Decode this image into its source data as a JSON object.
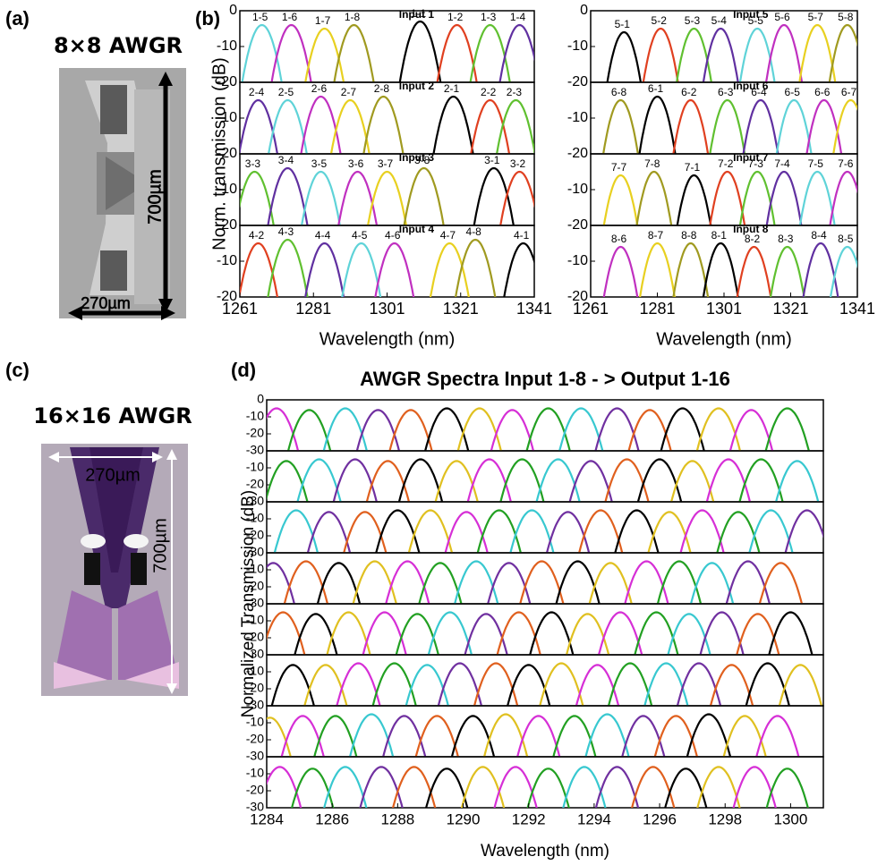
{
  "panel_labels": {
    "a": "(a)",
    "b": "(b)",
    "c": "(c)",
    "d": "(d)"
  },
  "device_8x8": {
    "title": "8×8 AWGR",
    "length": "700µm",
    "width": "270µm"
  },
  "device_16x16": {
    "title": "16×16 AWGR",
    "length": "700µm",
    "width": "270µm"
  },
  "chart_data": [
    {
      "type": "spectra",
      "ylabel": "Norm. transmission (dB)",
      "xlabel": "Wavelength (nm)",
      "xlim": [
        1261,
        1341
      ],
      "xticks": [
        1261,
        1281,
        1301,
        1321,
        1341
      ],
      "ylim": [
        -20,
        0
      ],
      "yticks": [
        0,
        -10,
        -20
      ],
      "panels": [
        {
          "title": "Input 1",
          "labels": [
            "1-5",
            "1-6",
            "1-7",
            "1-8",
            "1-1",
            "1-2",
            "1-3",
            "1-4"
          ],
          "x": [
            1267,
            1275,
            1284,
            1292,
            1310,
            1320,
            1329,
            1337
          ],
          "values": [
            -4,
            -4,
            -5,
            -4,
            -3,
            -4,
            -4,
            -4
          ],
          "colors": [
            "#5fd3d8",
            "#c030c0",
            "#e8d020",
            "#a09a20",
            "#000000",
            "#e04020",
            "#60c030",
            "#6030a0"
          ]
        },
        {
          "title": "Input 2",
          "labels": [
            "2-4",
            "2-5",
            "2-6",
            "2-7",
            "2-8",
            "2-1",
            "2-2",
            "2-3"
          ],
          "x": [
            1266,
            1274,
            1283,
            1291,
            1300,
            1319,
            1329,
            1336
          ],
          "values": [
            -5,
            -5,
            -4,
            -5,
            -4,
            -4,
            -5,
            -5
          ],
          "colors": [
            "#6030a0",
            "#5fd3d8",
            "#c030c0",
            "#e8d020",
            "#a09a20",
            "#000000",
            "#e04020",
            "#60c030"
          ]
        },
        {
          "title": "Input 3",
          "labels": [
            "3-3",
            "3-4",
            "3-5",
            "3-6",
            "3-7",
            "3-8",
            "3-1",
            "3-2"
          ],
          "x": [
            1265,
            1274,
            1283,
            1293,
            1301,
            1311,
            1330,
            1337
          ],
          "values": [
            -5,
            -4,
            -5,
            -5,
            -5,
            -4,
            -4,
            -5
          ],
          "colors": [
            "#60c030",
            "#6030a0",
            "#5fd3d8",
            "#c030c0",
            "#e8d020",
            "#a09a20",
            "#000000",
            "#e04020"
          ]
        },
        {
          "title": "Input 4",
          "labels": [
            "4-2",
            "4-3",
            "4-4",
            "4-5",
            "4-6",
            "4-7",
            "4-8",
            "4-1"
          ],
          "x": [
            1266,
            1274,
            1284,
            1294,
            1303,
            1318,
            1325,
            1338
          ],
          "values": [
            -5,
            -4,
            -5,
            -5,
            -5,
            -5,
            -4,
            -5
          ],
          "colors": [
            "#e04020",
            "#60c030",
            "#6030a0",
            "#5fd3d8",
            "#c030c0",
            "#e8d020",
            "#a09a20",
            "#000000"
          ]
        }
      ]
    },
    {
      "type": "spectra",
      "xlabel": "Wavelength (nm)",
      "xlim": [
        1261,
        1341
      ],
      "xticks": [
        1261,
        1281,
        1301,
        1321,
        1341
      ],
      "ylim": [
        -20,
        0
      ],
      "yticks": [
        0,
        -10,
        -20
      ],
      "panels": [
        {
          "title": "Input 5",
          "labels": [
            "5-1",
            "5-2",
            "5-3",
            "5-4",
            "5-5",
            "5-6",
            "5-7",
            "5-8"
          ],
          "x": [
            1271,
            1282,
            1292,
            1300,
            1311,
            1319,
            1329,
            1338
          ],
          "values": [
            -6,
            -5,
            -5,
            -5,
            -5,
            -4,
            -4,
            -4
          ],
          "colors": [
            "#000000",
            "#e04020",
            "#60c030",
            "#6030a0",
            "#5fd3d8",
            "#c030c0",
            "#e8d020",
            "#a09a20"
          ]
        },
        {
          "title": "Input 6",
          "labels": [
            "6-8",
            "6-1",
            "6-2",
            "6-3",
            "6-4",
            "6-5",
            "6-6",
            "6-7"
          ],
          "x": [
            1270,
            1281,
            1291,
            1302,
            1312,
            1322,
            1331,
            1339
          ],
          "values": [
            -5,
            -4,
            -5,
            -5,
            -5,
            -5,
            -5,
            -5
          ],
          "colors": [
            "#a09a20",
            "#000000",
            "#e04020",
            "#60c030",
            "#6030a0",
            "#5fd3d8",
            "#c030c0",
            "#e8d020"
          ]
        },
        {
          "title": "Input 7",
          "labels": [
            "7-7",
            "7-8",
            "7-1",
            "7-2",
            "7-3",
            "7-4",
            "7-5",
            "7-6"
          ],
          "x": [
            1270,
            1280,
            1292,
            1302,
            1311,
            1319,
            1329,
            1338
          ],
          "values": [
            -6,
            -5,
            -6,
            -5,
            -5,
            -5,
            -5,
            -5
          ],
          "colors": [
            "#e8d020",
            "#a09a20",
            "#000000",
            "#e04020",
            "#60c030",
            "#6030a0",
            "#5fd3d8",
            "#c030c0"
          ]
        },
        {
          "title": "Input 8",
          "labels": [
            "8-6",
            "8-7",
            "8-8",
            "8-1",
            "8-2",
            "8-3",
            "8-4",
            "8-5"
          ],
          "x": [
            1270,
            1281,
            1291,
            1300,
            1310,
            1320,
            1330,
            1338
          ],
          "values": [
            -6,
            -5,
            -5,
            -5,
            -6,
            -6,
            -5,
            -6
          ],
          "colors": [
            "#c030c0",
            "#e8d020",
            "#a09a20",
            "#000000",
            "#e04020",
            "#60c030",
            "#6030a0",
            "#5fd3d8"
          ]
        }
      ]
    },
    {
      "type": "spectra",
      "title": "AWGR Spectra Input 1-8 - > Output 1-16",
      "ylabel": "Normalized Transmission (dB)",
      "xlabel": "Wavelength (nm)",
      "xlim": [
        1284,
        1301
      ],
      "xticks": [
        1284,
        1286,
        1288,
        1290,
        1292,
        1294,
        1296,
        1298,
        1300
      ],
      "ylim": [
        -30,
        0
      ],
      "yticks": [
        0,
        -10,
        -20,
        -30
      ],
      "palette": [
        "#d62fd6",
        "#22a022",
        "#38c8d0",
        "#7030a0",
        "#e0601e",
        "#000000",
        "#e0c020"
      ],
      "panels": [
        {
          "x": [
            1284.3,
            1285.3,
            1286.4,
            1287.4,
            1288.4,
            1289.5,
            1290.5,
            1291.5,
            1292.6,
            1293.6,
            1294.7,
            1295.7,
            1296.7,
            1297.8,
            1298.8,
            1299.9
          ],
          "values": [
            -5,
            -6,
            -5,
            -6,
            -6,
            -5,
            -5,
            -6,
            -5,
            -5,
            -5,
            -6,
            -5,
            -5,
            -6,
            -5
          ]
        },
        {
          "x": [
            1284.6,
            1285.6,
            1286.7,
            1287.7,
            1288.7,
            1289.8,
            1290.8,
            1291.8,
            1292.9,
            1293.9,
            1295.0,
            1296.0,
            1297.0,
            1298.1,
            1299.1,
            1300.2
          ],
          "values": [
            -6,
            -5,
            -5,
            -6,
            -5,
            -6,
            -5,
            -5,
            -5,
            -6,
            -5,
            -5,
            -6,
            -5,
            -5,
            -6
          ]
        },
        {
          "x": [
            1284.9,
            1285.9,
            1287.0,
            1288.0,
            1289.0,
            1290.1,
            1291.1,
            1292.1,
            1293.2,
            1294.2,
            1295.3,
            1296.3,
            1297.3,
            1298.4,
            1299.4,
            1300.5
          ],
          "values": [
            -5,
            -6,
            -6,
            -5,
            -5,
            -6,
            -5,
            -5,
            -6,
            -5,
            -5,
            -6,
            -5,
            -6,
            -5,
            -5
          ]
        },
        {
          "x": [
            1284.2,
            1285.2,
            1286.2,
            1287.3,
            1288.3,
            1289.3,
            1290.4,
            1291.4,
            1292.4,
            1293.5,
            1294.5,
            1295.6,
            1296.6,
            1297.6,
            1298.7,
            1299.7
          ],
          "values": [
            -6,
            -5,
            -6,
            -5,
            -5,
            -6,
            -5,
            -6,
            -5,
            -5,
            -6,
            -5,
            -5,
            -6,
            -5,
            -6
          ]
        },
        {
          "x": [
            1284.5,
            1285.5,
            1286.5,
            1287.6,
            1288.6,
            1289.6,
            1290.7,
            1291.7,
            1292.7,
            1293.8,
            1294.8,
            1295.9,
            1296.9,
            1297.9,
            1299.0,
            1300.0
          ],
          "values": [
            -5,
            -6,
            -5,
            -5,
            -6,
            -5,
            -6,
            -5,
            -5,
            -6,
            -5,
            -5,
            -6,
            -5,
            -6,
            -5
          ]
        },
        {
          "x": [
            1284.8,
            1285.8,
            1286.8,
            1287.9,
            1288.9,
            1289.9,
            1291.0,
            1292.0,
            1293.0,
            1294.1,
            1295.1,
            1296.2,
            1297.2,
            1298.2,
            1299.3,
            1300.3
          ],
          "values": [
            -6,
            -6,
            -5,
            -5,
            -6,
            -5,
            -5,
            -6,
            -5,
            -6,
            -5,
            -5,
            -5,
            -6,
            -5,
            -6
          ]
        },
        {
          "x": [
            1284.1,
            1285.1,
            1286.1,
            1287.2,
            1288.2,
            1289.2,
            1290.3,
            1291.3,
            1292.3,
            1293.4,
            1294.4,
            1295.5,
            1296.5,
            1297.5,
            1298.6,
            1299.6
          ],
          "values": [
            -7,
            -6,
            -6,
            -5,
            -6,
            -6,
            -6,
            -5,
            -6,
            -6,
            -5,
            -6,
            -6,
            -5,
            -6,
            -6
          ]
        },
        {
          "x": [
            1284.4,
            1285.4,
            1286.4,
            1287.5,
            1288.5,
            1289.5,
            1290.6,
            1291.6,
            1292.6,
            1293.7,
            1294.7,
            1295.8,
            1296.8,
            1297.8,
            1298.9,
            1299.9
          ],
          "values": [
            -6,
            -7,
            -6,
            -6,
            -6,
            -7,
            -6,
            -6,
            -7,
            -6,
            -6,
            -6,
            -7,
            -6,
            -6,
            -7
          ]
        }
      ]
    }
  ]
}
